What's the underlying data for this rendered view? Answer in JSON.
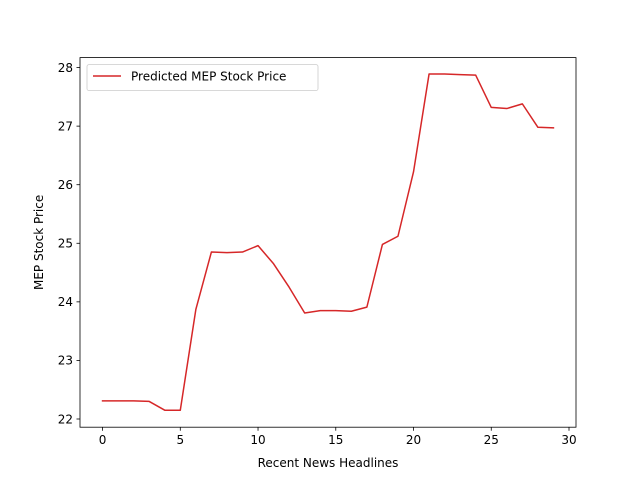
{
  "chart_data": {
    "type": "line",
    "title": "",
    "xlabel": "Recent News Headlines",
    "ylabel": "MEP Stock Price",
    "xlim": [
      -1.45,
      30.45
    ],
    "ylim": [
      21.86,
      28.17
    ],
    "xticks": [
      0,
      5,
      10,
      15,
      20,
      25,
      30
    ],
    "yticks": [
      22,
      23,
      24,
      25,
      26,
      27,
      28
    ],
    "grid": false,
    "legend_position": "upper-left",
    "series": [
      {
        "name": "Predicted MEP Stock Price",
        "color": "#d62728",
        "x": [
          0,
          1,
          2,
          3,
          4,
          5,
          6,
          7,
          8,
          9,
          10,
          11,
          12,
          13,
          14,
          15,
          16,
          17,
          18,
          19,
          20,
          21,
          22,
          23,
          24,
          25,
          26,
          27,
          28,
          29
        ],
        "y": [
          22.31,
          22.31,
          22.31,
          22.3,
          22.15,
          22.15,
          23.87,
          24.85,
          24.84,
          24.85,
          24.96,
          24.65,
          24.25,
          23.81,
          23.85,
          23.85,
          23.84,
          23.91,
          24.98,
          25.12,
          26.22,
          27.89,
          27.89,
          27.88,
          27.87,
          27.32,
          27.3,
          27.38,
          26.98,
          26.97
        ]
      }
    ]
  }
}
